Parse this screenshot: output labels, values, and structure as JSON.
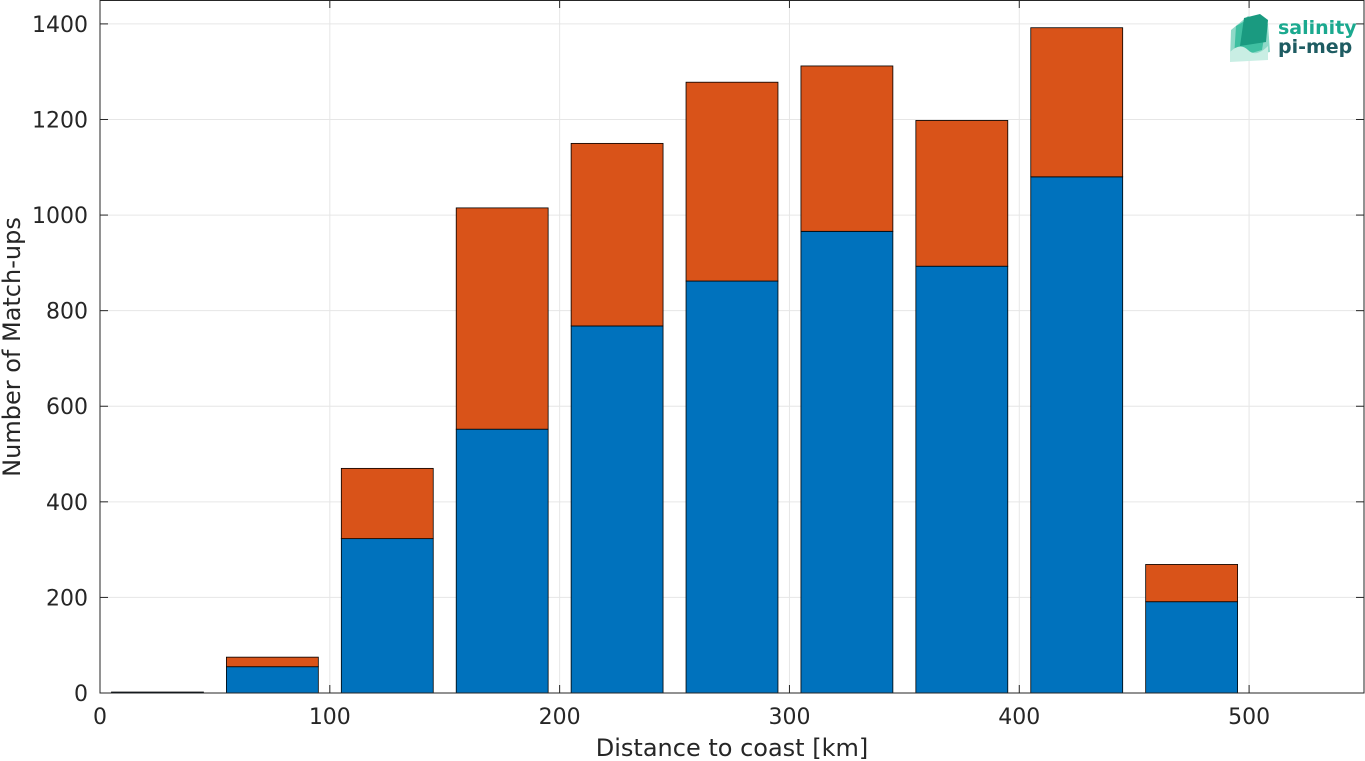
{
  "chart_data": {
    "type": "bar",
    "stacked": true,
    "x": [
      25,
      75,
      125,
      175,
      225,
      275,
      325,
      375,
      425,
      475,
      525
    ],
    "series": [
      {
        "values": [
          2,
          55,
          323,
          552,
          768,
          862,
          966,
          893,
          1080,
          191,
          0
        ],
        "color": "#0072BD"
      },
      {
        "values": [
          0,
          20,
          147,
          463,
          382,
          416,
          346,
          305,
          312,
          78,
          0
        ],
        "color": "#D95319"
      }
    ],
    "xlabel": "Distance to coast [km]",
    "ylabel": "Number of Match-ups",
    "xlim": [
      0,
      550
    ],
    "ylim": [
      0,
      1450
    ],
    "xticks": [
      0,
      100,
      200,
      300,
      400,
      500
    ],
    "yticks": [
      0,
      200,
      400,
      600,
      800,
      1000,
      1200,
      1400
    ],
    "grid": true,
    "legend": "none"
  },
  "logo": {
    "line1": "salinity",
    "line2": "pi-mep",
    "color1": "#1BA98F",
    "color2": "#1E5C62"
  }
}
